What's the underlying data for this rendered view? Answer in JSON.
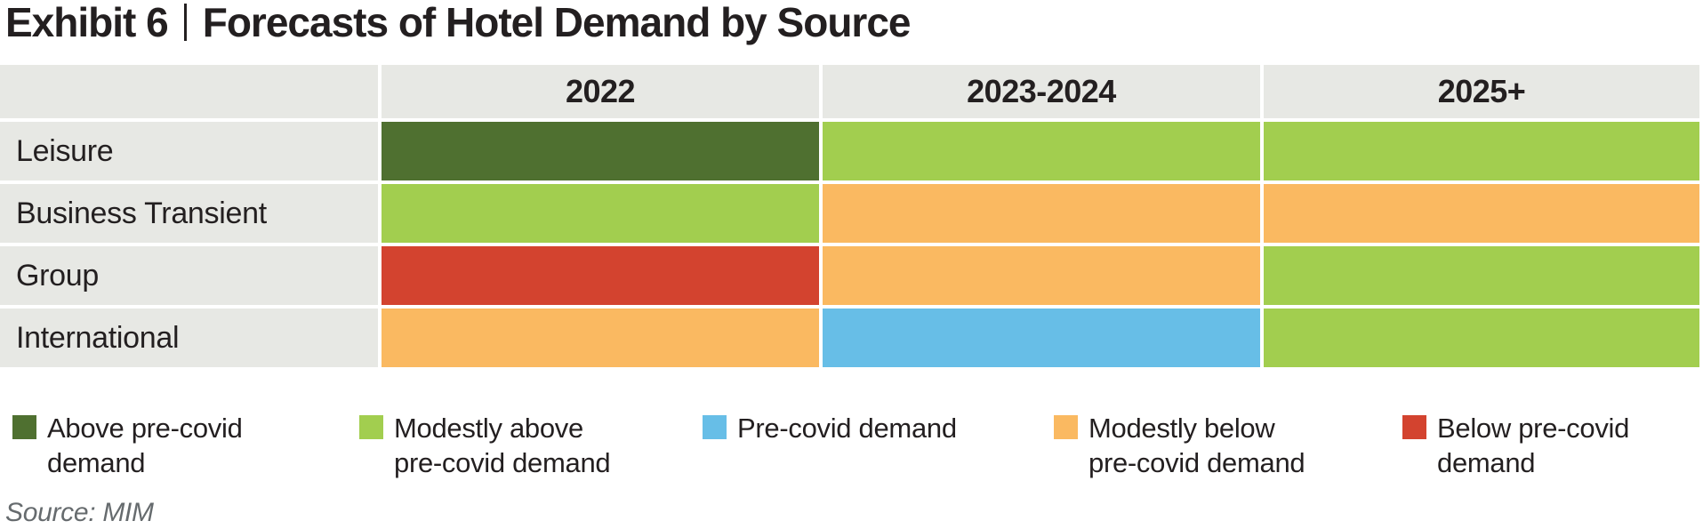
{
  "header": {
    "exhibit_label": "Exhibit 6",
    "separator": "|",
    "title": "Forecasts of Hotel Demand by Source"
  },
  "colors": {
    "above": "#4F7030",
    "modestly_above": "#A2CE4F",
    "pre_covid": "#67BEE7",
    "modestly_below": "#FAB961",
    "below": "#D3432F",
    "cell_label_bg": "#E7E8E4",
    "text": "#231F20",
    "source_text": "#666B6E"
  },
  "chart_data": {
    "type": "heatmap",
    "title": "Exhibit 6 | Forecasts of Hotel Demand by Source",
    "columns": [
      "2022",
      "2023-2024",
      "2025+"
    ],
    "rows": [
      {
        "label": "Leisure",
        "values": [
          "above",
          "modestly_above",
          "modestly_above"
        ]
      },
      {
        "label": "Business Transient",
        "values": [
          "modestly_above",
          "modestly_below",
          "modestly_below"
        ]
      },
      {
        "label": "Group",
        "values": [
          "below",
          "modestly_below",
          "modestly_above"
        ]
      },
      {
        "label": "International",
        "values": [
          "modestly_below",
          "pre_covid",
          "modestly_above"
        ]
      }
    ],
    "legend": [
      {
        "key": "above",
        "label": "Above pre-covid\ndemand",
        "color": "#4F7030"
      },
      {
        "key": "modestly_above",
        "label": "Modestly above\npre-covid demand",
        "color": "#A2CE4F"
      },
      {
        "key": "pre_covid",
        "label": "Pre-covid demand",
        "color": "#67BEE7"
      },
      {
        "key": "modestly_below",
        "label": "Modestly below\npre-covid demand",
        "color": "#FAB961"
      },
      {
        "key": "below",
        "label": "Below pre-covid\ndemand",
        "color": "#D3432F"
      }
    ],
    "legend_position": "bottom"
  },
  "source": "Source: MIM"
}
